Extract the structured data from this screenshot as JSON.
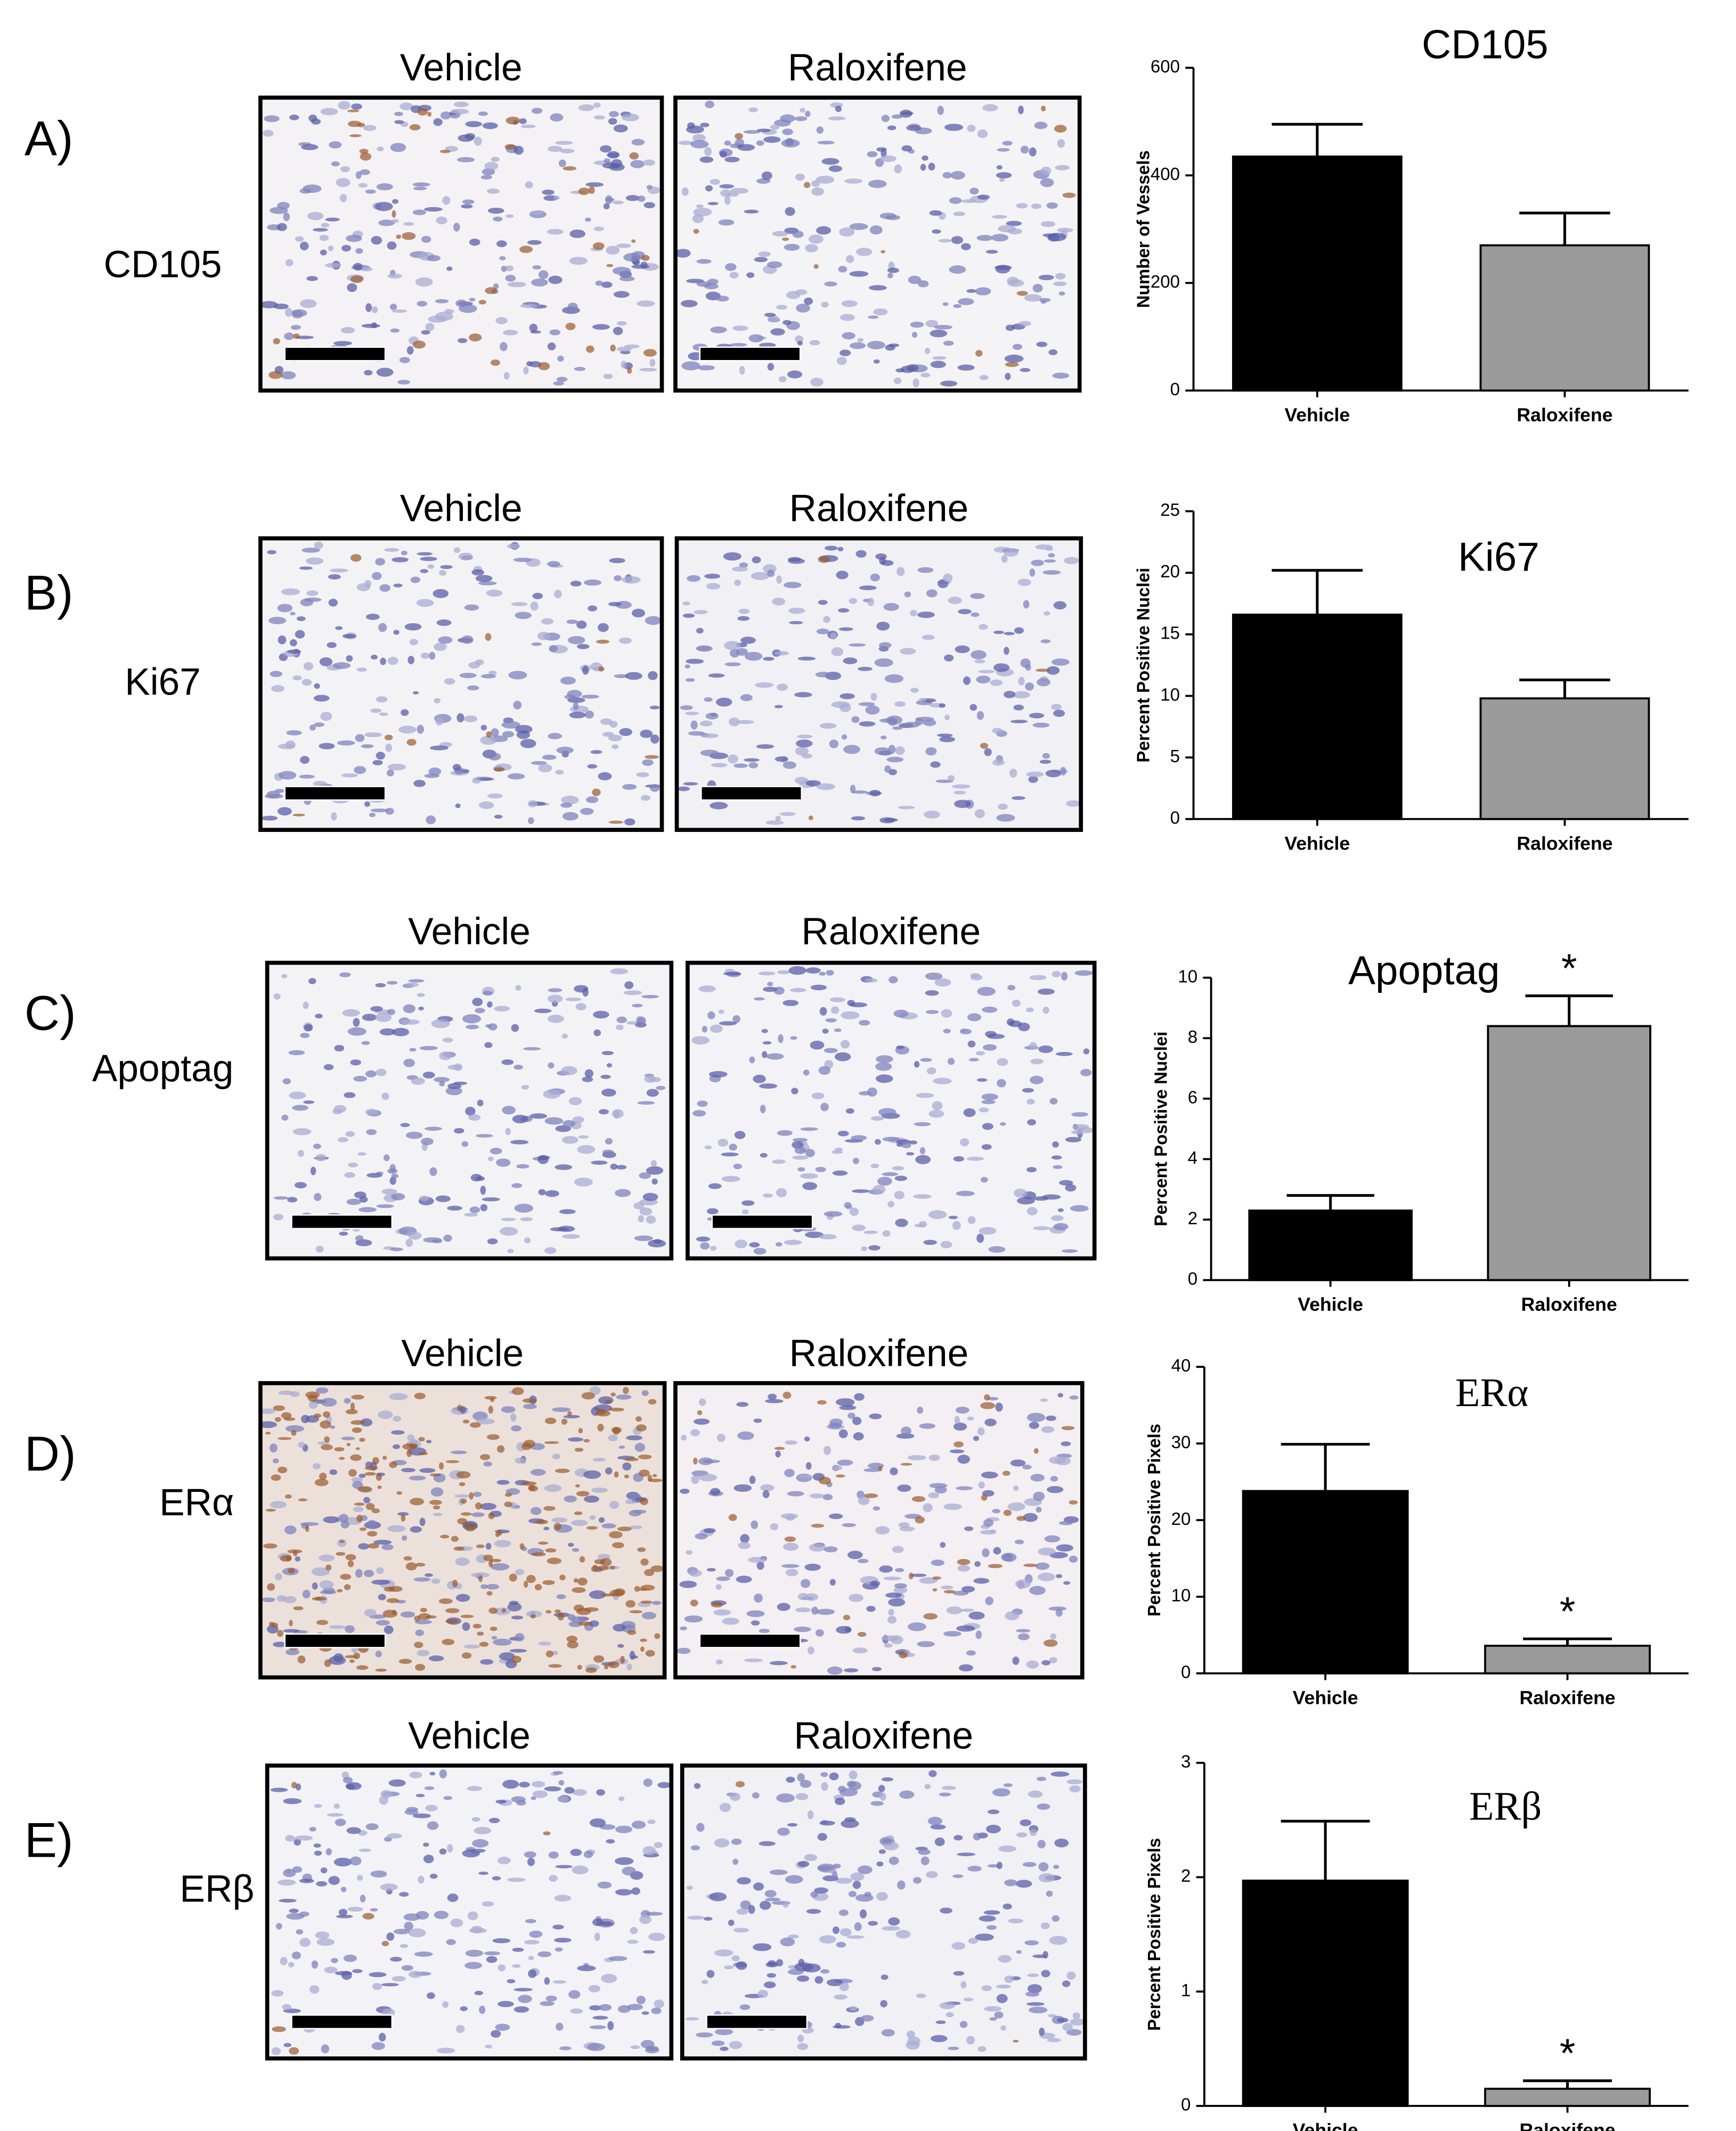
{
  "panels": [
    {
      "label": "A)",
      "marker": "CD105",
      "image_titles": [
        "Vehicle",
        "Raloxifene"
      ]
    },
    {
      "label": "B)",
      "marker": "Ki67",
      "image_titles": [
        "Vehicle",
        "Raloxifene"
      ]
    },
    {
      "label": "C)",
      "marker": "Apoptag",
      "image_titles": [
        "Vehicle",
        "Raloxifene"
      ]
    },
    {
      "label": "D)",
      "marker": "ERα",
      "image_titles": [
        "Vehicle",
        "Raloxifene"
      ]
    },
    {
      "label": "E)",
      "marker": "ERβ",
      "image_titles": [
        "Vehicle",
        "Raloxifene"
      ]
    }
  ],
  "chart_data": [
    {
      "type": "bar",
      "title": "CD105",
      "ylabel": "Number of Vessels",
      "categories": [
        "Vehicle",
        "Raloxifene"
      ],
      "values": [
        435,
        270
      ],
      "errors": [
        60,
        60
      ],
      "colors": [
        "#000000",
        "#9a9a9a"
      ],
      "ylim": [
        0,
        600
      ],
      "yticks": [
        0,
        200,
        400,
        600
      ]
    },
    {
      "type": "bar",
      "title": "Ki67",
      "ylabel": "Percent Positive Nuclei",
      "categories": [
        "Vehicle",
        "Raloxifene"
      ],
      "values": [
        16.6,
        9.8
      ],
      "errors": [
        3.6,
        1.5
      ],
      "colors": [
        "#000000",
        "#9a9a9a"
      ],
      "ylim": [
        0,
        25
      ],
      "yticks": [
        0,
        5,
        10,
        15,
        20,
        25
      ]
    },
    {
      "type": "bar",
      "title": "Apoptag",
      "ylabel": "Percent Positive Nuclei",
      "categories": [
        "Vehicle",
        "Raloxifene"
      ],
      "values": [
        2.3,
        8.4
      ],
      "errors": [
        0.5,
        1.0
      ],
      "colors": [
        "#000000",
        "#9a9a9a"
      ],
      "ylim": [
        0,
        10
      ],
      "yticks": [
        0,
        2,
        4,
        6,
        8,
        10
      ],
      "annotations": [
        {
          "category": "Raloxifene",
          "text": "*"
        }
      ]
    },
    {
      "type": "bar",
      "title": "ERα",
      "ylabel": "Percent Positive Pixels",
      "categories": [
        "Vehicle",
        "Raloxifene"
      ],
      "values": [
        23.8,
        3.6
      ],
      "errors": [
        6.1,
        0.9
      ],
      "colors": [
        "#000000",
        "#9a9a9a"
      ],
      "ylim": [
        0,
        40
      ],
      "yticks": [
        0,
        10,
        20,
        30,
        40
      ],
      "annotations": [
        {
          "category": "Raloxifene",
          "text": "*"
        }
      ]
    },
    {
      "type": "bar",
      "title": "ERβ",
      "ylabel": "Percent Positive Pixels",
      "categories": [
        "Vehicle",
        "Raloxifene"
      ],
      "values": [
        1.97,
        0.15
      ],
      "errors": [
        0.52,
        0.07
      ],
      "colors": [
        "#000000",
        "#9a9a9a"
      ],
      "ylim": [
        0,
        3
      ],
      "yticks": [
        0,
        1,
        2,
        3
      ],
      "annotations": [
        {
          "category": "Raloxifene",
          "text": "*"
        }
      ]
    }
  ]
}
